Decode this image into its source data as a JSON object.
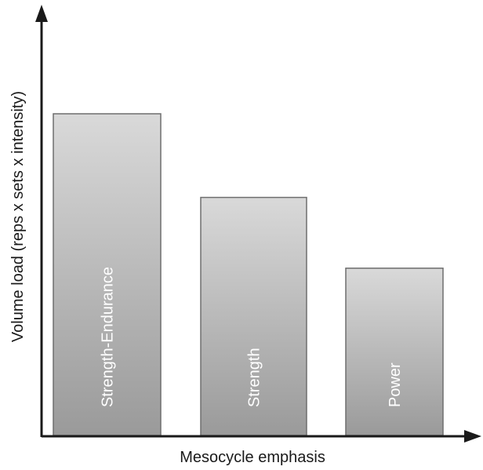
{
  "chart_data": {
    "type": "bar",
    "title": "",
    "xlabel": "Mesocycle emphasis",
    "ylabel": "Volume load (reps x sets x intensity)",
    "categories": [
      "Strength-Endurance",
      "Strength",
      "Power"
    ],
    "values": [
      100,
      74,
      52
    ],
    "ylim": [
      0,
      130
    ],
    "grid": false,
    "legend": "none",
    "bar_labels_inside_rotated": true,
    "colors": {
      "bar_top": "#d9d9d9",
      "bar_bottom": "#9a9a9a",
      "bar_stroke": "#6e6e6e",
      "axis": "#1a1a1a",
      "bar_label": "#ffffff",
      "axis_label": "#1a1a1a"
    }
  }
}
